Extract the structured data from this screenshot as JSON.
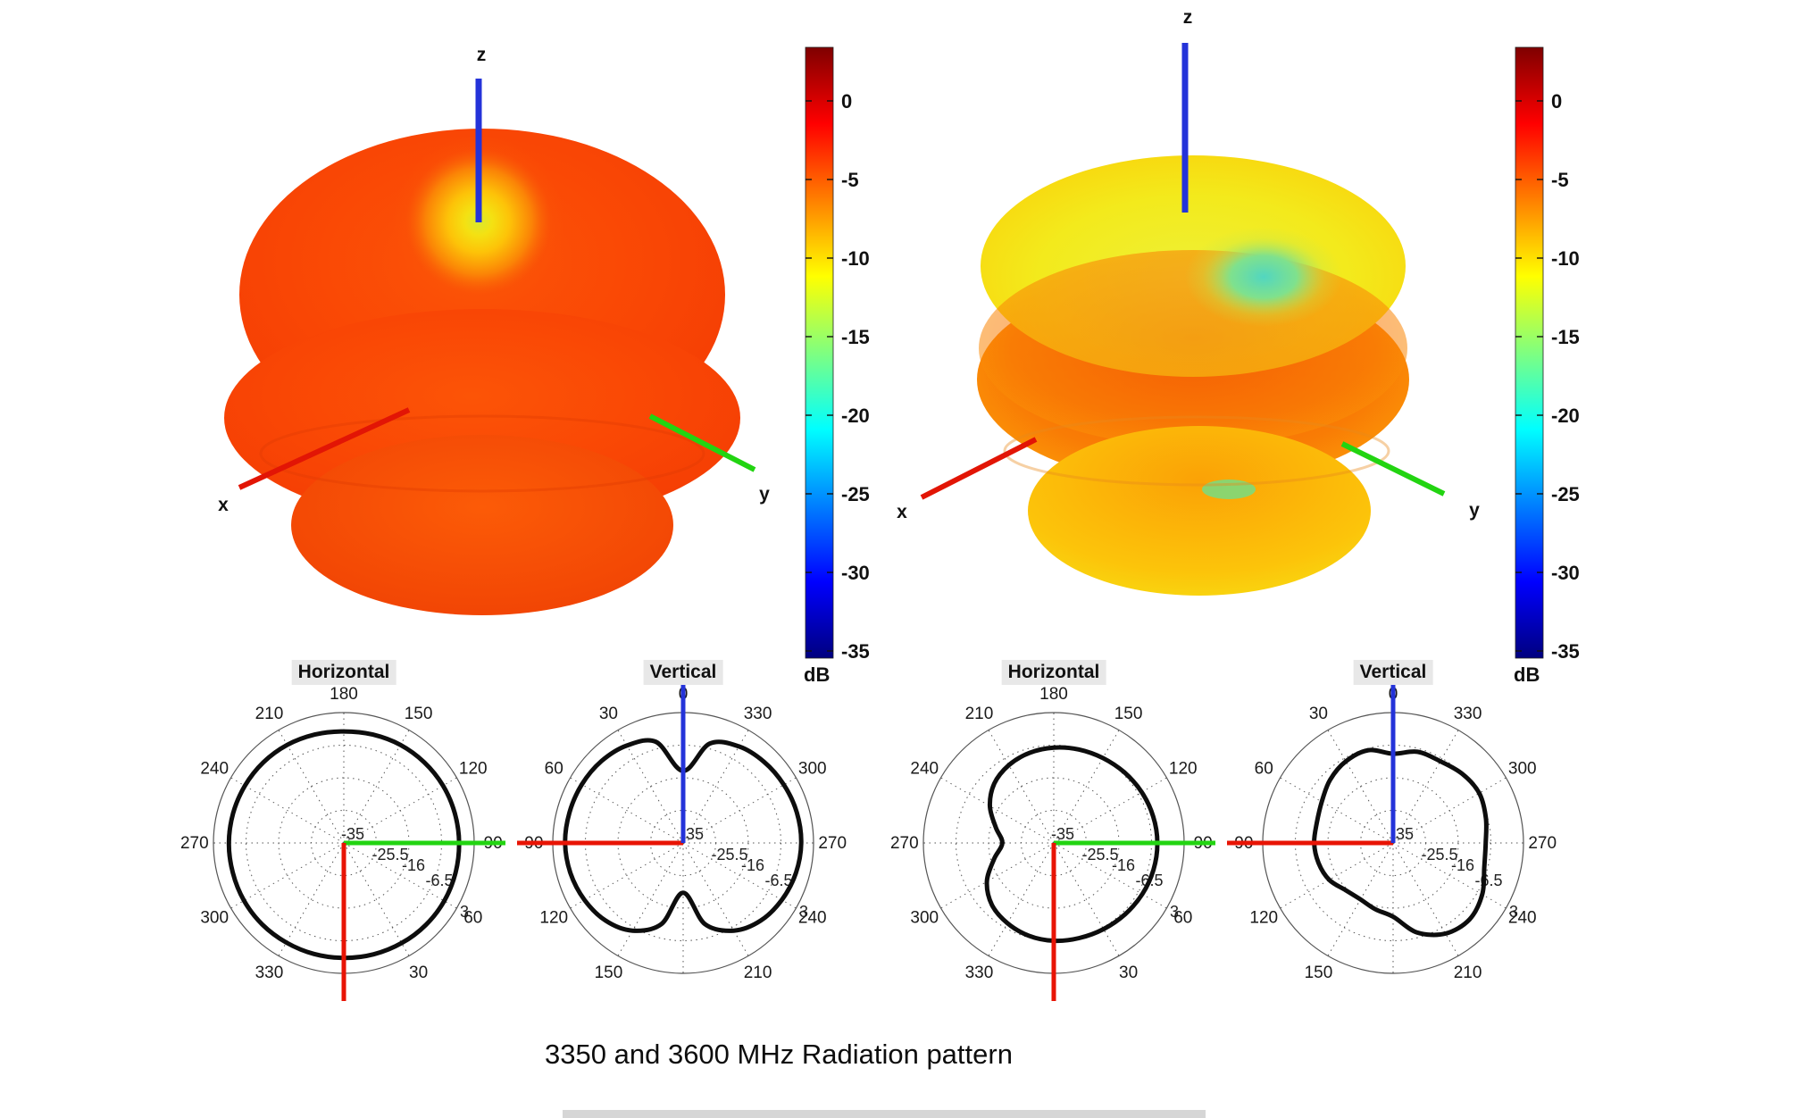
{
  "caption": "3350 and 3600 MHz Radiation pattern",
  "colors": {
    "axis_x_red": "#e81405",
    "axis_y_green": "#22d411",
    "axis_z_blue": "#2433d9",
    "curve_black": "#0d0d0d",
    "grid_gray": "#555555",
    "title_bg": "#e8e8e8",
    "jet": [
      {
        "p": 0.0,
        "c": "#7f0000"
      },
      {
        "p": 0.125,
        "c": "#ff0000"
      },
      {
        "p": 0.375,
        "c": "#ffff00"
      },
      {
        "p": 0.625,
        "c": "#00ffff"
      },
      {
        "p": 0.875,
        "c": "#0000ff"
      },
      {
        "p": 1.0,
        "c": "#00007f"
      }
    ]
  },
  "colorbar": {
    "ticks": [
      "0",
      "-5",
      "-10",
      "-15",
      "-20",
      "-25",
      "-30",
      "-35"
    ],
    "tick_values_db": [
      0,
      -5,
      -10,
      -15,
      -20,
      -25,
      -30,
      -35
    ],
    "unit": "dB"
  },
  "chart_data": [
    {
      "type": "3d-surface",
      "frequency_mhz": 3350,
      "axes": {
        "x": "x",
        "y": "y",
        "z": "z"
      },
      "colormap": "jet",
      "unit": "dB",
      "value_range_db": [
        3,
        -35
      ],
      "colorbar_ticks_db": [
        0,
        -5,
        -10,
        -15,
        -20,
        -25,
        -30,
        -35
      ],
      "description": "Near-omnidirectional doughnut/sphere, surface mostly -1 to -5 dB (red-orange), small zenith dimple around -10 to -13 dB (yellow-green) at the +z axis"
    },
    {
      "type": "3d-surface",
      "frequency_mhz": 3600,
      "axes": {
        "x": "x",
        "y": "y",
        "z": "z"
      },
      "colormap": "jet",
      "unit": "dB",
      "value_range_db": [
        3,
        -35
      ],
      "colorbar_ticks_db": [
        0,
        -5,
        -10,
        -15,
        -20,
        -25,
        -30,
        -35
      ],
      "description": "Stacked toroidal lobes, surface mostly -4 to -10 dB (orange-yellow), zenith depression around -15 to -18 dB (green-cyan patch), yellow lower lobe"
    },
    {
      "type": "polar",
      "title": "Horizontal",
      "frequency_mhz": 3350,
      "orientation": "0 deg at bottom, angles increase counter-clockwise, 90 at right",
      "angle_labels": [
        "30",
        "60",
        "90",
        "120",
        "150",
        "180",
        "210",
        "240",
        "270",
        "300",
        "330"
      ],
      "radial_ticks_db": [
        -35,
        -25.5,
        -16,
        -6.5,
        3
      ],
      "radial_tick_labels": [
        "-35",
        "-25.5",
        "-16",
        "-6.5",
        "3"
      ],
      "angles_deg": [
        0,
        15,
        30,
        45,
        60,
        75,
        90,
        105,
        120,
        135,
        150,
        165,
        180,
        195,
        210,
        225,
        240,
        255,
        270,
        285,
        300,
        315,
        330,
        345
      ],
      "values_db": [
        -1.5,
        -1.4,
        -1.3,
        -1.2,
        -1.2,
        -1.3,
        -1.4,
        -1.5,
        -1.6,
        -1.8,
        -2.0,
        -2.3,
        -2.5,
        -2.3,
        -2.0,
        -1.8,
        -1.7,
        -1.6,
        -1.5,
        -1.5,
        -1.4,
        -1.4,
        -1.5,
        -1.5
      ]
    },
    {
      "type": "polar",
      "title": "Vertical",
      "frequency_mhz": 3350,
      "orientation": "0 deg at top, 90 at left",
      "angle_labels": [
        "0",
        "30",
        "60",
        "90",
        "120",
        "150",
        "210",
        "240",
        "270",
        "300",
        "330"
      ],
      "radial_ticks_db": [
        -35,
        -25.5,
        -16,
        -6.5,
        3
      ],
      "radial_tick_labels": [
        "-35",
        "-25.5",
        "-16",
        "-6.5",
        "3"
      ],
      "angles_deg": [
        0,
        15,
        30,
        45,
        60,
        75,
        90,
        105,
        120,
        135,
        150,
        165,
        180,
        195,
        210,
        225,
        240,
        255,
        270,
        285,
        300,
        315,
        330,
        345
      ],
      "values_db": [
        -14,
        -4.5,
        -2.2,
        -1.3,
        -0.9,
        -0.7,
        -0.6,
        -1.0,
        -1.8,
        -3.0,
        -5.5,
        -10.5,
        -20.5,
        -10.5,
        -5.5,
        -3.0,
        -1.8,
        -1.0,
        -0.6,
        -0.7,
        -1.1,
        -1.6,
        -2.5,
        -5.0
      ]
    },
    {
      "type": "polar",
      "title": "Horizontal",
      "frequency_mhz": 3600,
      "orientation": "0 deg at bottom, angles increase counter-clockwise, 90 at right",
      "angle_labels": [
        "30",
        "60",
        "90",
        "120",
        "150",
        "180",
        "210",
        "240",
        "270",
        "300",
        "330"
      ],
      "radial_ticks_db": [
        -35,
        -25.5,
        -16,
        -6.5,
        3
      ],
      "radial_tick_labels": [
        "-35",
        "-25.5",
        "-16",
        "-6.5",
        "3"
      ],
      "angles_deg": [
        0,
        15,
        30,
        45,
        60,
        75,
        90,
        105,
        120,
        135,
        150,
        165,
        180,
        195,
        210,
        225,
        240,
        255,
        270,
        285,
        300,
        315,
        330,
        345
      ],
      "values_db": [
        -6.5,
        -6.3,
        -6.0,
        -5.6,
        -5.2,
        -4.9,
        -4.8,
        -5.0,
        -5.4,
        -5.9,
        -6.4,
        -6.8,
        -7.2,
        -7.8,
        -8.8,
        -10.5,
        -13.5,
        -17.5,
        -20.0,
        -17.0,
        -12.5,
        -9.5,
        -8.0,
        -7.0
      ]
    },
    {
      "type": "polar",
      "title": "Vertical",
      "frequency_mhz": 3600,
      "orientation": "0 deg at top, 90 at left",
      "angle_labels": [
        "0",
        "30",
        "60",
        "90",
        "120",
        "150",
        "210",
        "240",
        "270",
        "300",
        "330"
      ],
      "radial_ticks_db": [
        -35,
        -25.5,
        -16,
        -6.5,
        3
      ],
      "radial_tick_labels": [
        "-35",
        "-25.5",
        "-16",
        "-6.5",
        "3"
      ],
      "angles_deg": [
        0,
        15,
        30,
        45,
        60,
        75,
        90,
        105,
        120,
        135,
        150,
        165,
        180,
        195,
        210,
        225,
        240,
        255,
        270,
        285,
        300,
        315,
        330,
        345
      ],
      "values_db": [
        -9.0,
        -7.0,
        -7.5,
        -9.0,
        -11.0,
        -12.0,
        -12.0,
        -12.5,
        -13.5,
        -15.5,
        -16.0,
        -15.0,
        -13.5,
        -8.0,
        -4.5,
        -3.5,
        -5.0,
        -7.5,
        -8.0,
        -7.0,
        -6.0,
        -6.5,
        -7.5,
        -7.5
      ]
    }
  ]
}
